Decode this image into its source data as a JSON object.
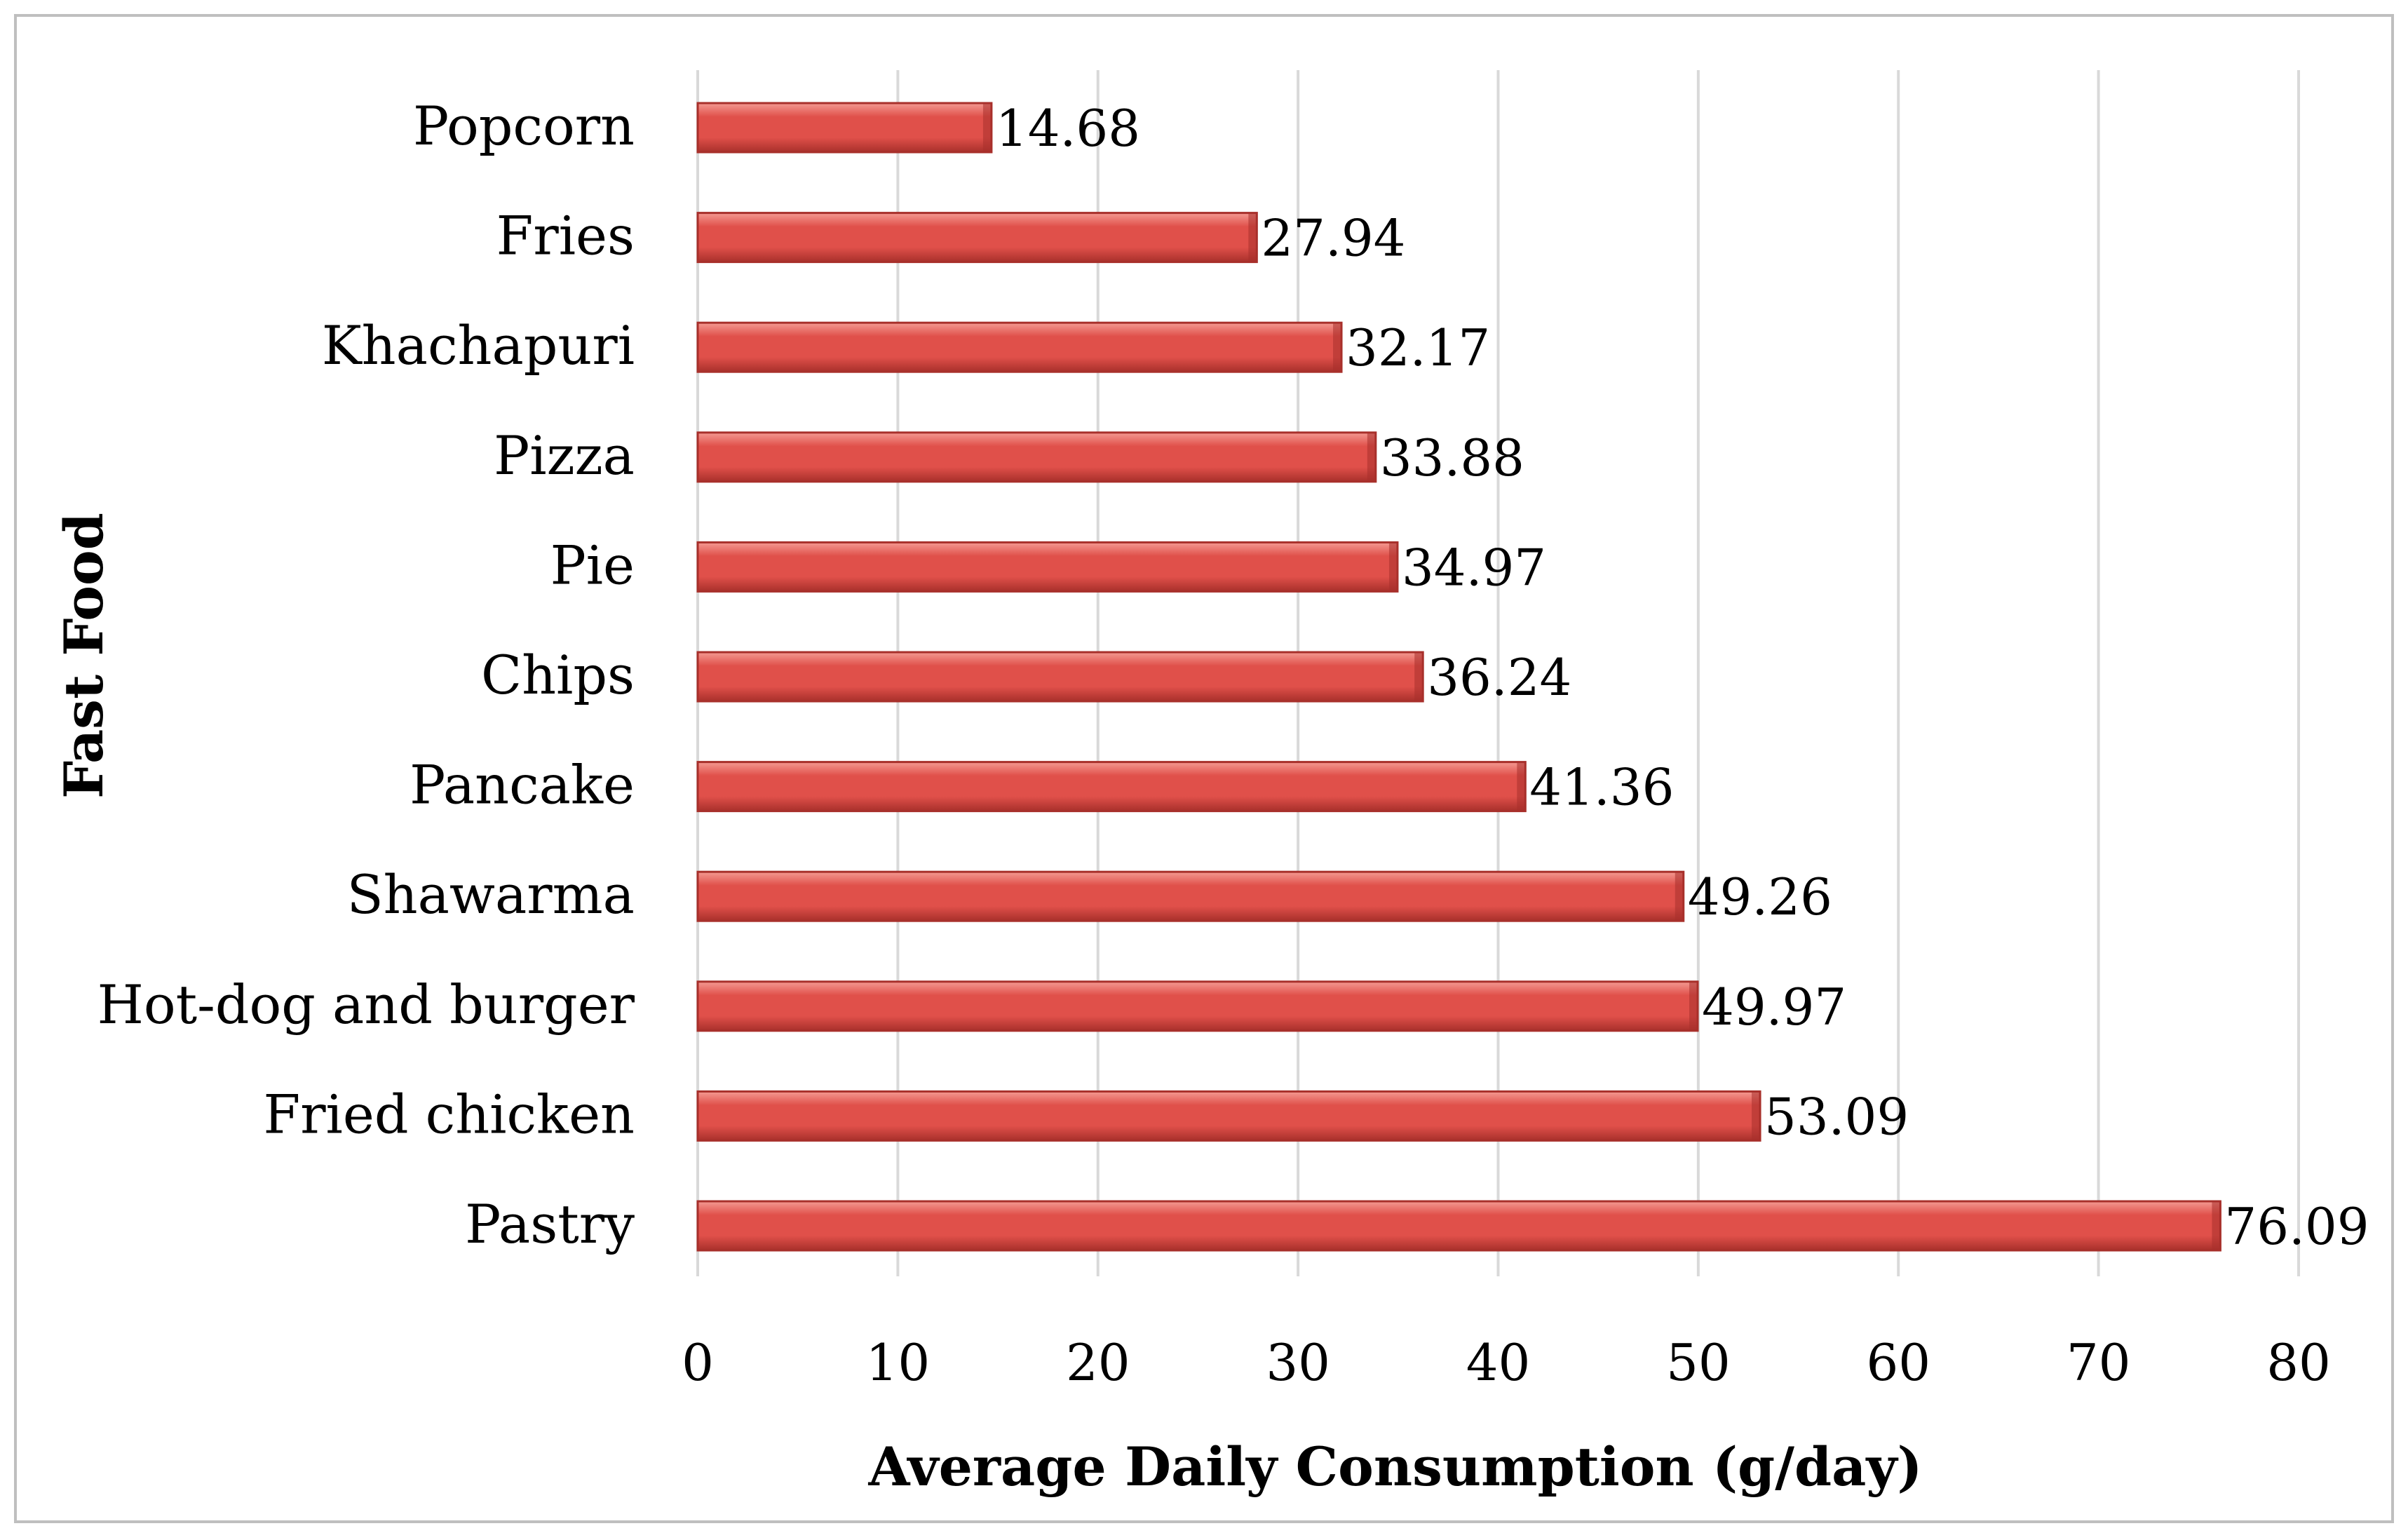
{
  "chart_data": {
    "type": "bar",
    "orientation": "horizontal",
    "categories": [
      "Popcorn",
      "Fries",
      "Khachapuri",
      "Pizza",
      "Pie",
      "Chips",
      "Pancake",
      "Shawarma",
      "Hot-dog and burger",
      "Fried chicken",
      "Pastry"
    ],
    "values": [
      14.68,
      27.94,
      32.17,
      33.88,
      34.97,
      36.24,
      41.36,
      49.26,
      49.97,
      53.09,
      76.09
    ],
    "value_labels": [
      "14.68",
      "27.94",
      "32.17",
      "33.88",
      "34.97",
      "36.24",
      "41.36",
      "49.26",
      "49.97",
      "53.09",
      "76.09"
    ],
    "xticks": [
      "0",
      "10",
      "20",
      "30",
      "40",
      "50",
      "60",
      "70",
      "80"
    ],
    "xlim": [
      0,
      80
    ],
    "title": "",
    "xlabel": "Average Daily Consumption (g/day)",
    "ylabel": "Fast Food",
    "grid": "vertical",
    "bar_color": "#e0504a",
    "bar_highlight": "#f49a92",
    "bar_edge": "#a8302b",
    "gridline_color": "#d9d9d9",
    "frame_color": "#bfbfbf"
  }
}
